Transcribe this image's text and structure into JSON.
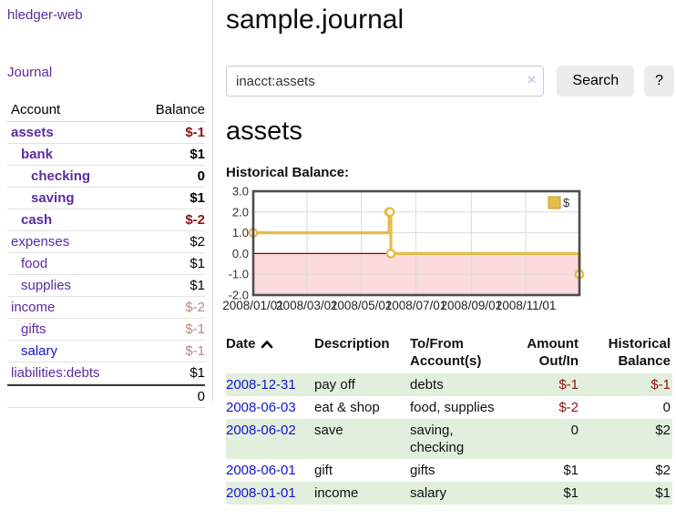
{
  "app": {
    "brand": "hledger-web"
  },
  "colors": {
    "link_purple": "#5b2c9e",
    "link_blue": "#1414cc",
    "negative_strong": "#8c1414",
    "negative_muted": "#bd8686",
    "stripe_green": "#e1efdc",
    "button_bg": "#ececec"
  },
  "sidebar": {
    "nav": {
      "journal_label": "Journal"
    },
    "accounts_table": {
      "headers": {
        "account": "Account",
        "balance": "Balance"
      },
      "rows": [
        {
          "name": "assets",
          "depth": 1,
          "bold": true,
          "balance": "$-1",
          "bal_style": "neg"
        },
        {
          "name": "bank",
          "depth": 2,
          "bold": true,
          "balance": "$1",
          "bal_style": "pos"
        },
        {
          "name": "checking",
          "depth": 3,
          "bold": true,
          "balance": "0",
          "bal_style": "pos"
        },
        {
          "name": "saving",
          "depth": 3,
          "bold": true,
          "balance": "$1",
          "bal_style": "pos"
        },
        {
          "name": "cash",
          "depth": 2,
          "bold": true,
          "balance": "$-2",
          "bal_style": "neg"
        },
        {
          "name": "expenses",
          "depth": 1,
          "bold": false,
          "balance": "$2",
          "bal_style": "pos"
        },
        {
          "name": "food",
          "depth": 2,
          "bold": false,
          "balance": "$1",
          "bal_style": "pos"
        },
        {
          "name": "supplies",
          "depth": 2,
          "bold": false,
          "balance": "$1",
          "bal_style": "pos"
        },
        {
          "name": "income",
          "depth": 1,
          "bold": false,
          "balance": "$-2",
          "bal_style": "neg-muted"
        },
        {
          "name": "gifts",
          "depth": 2,
          "bold": false,
          "balance": "$-1",
          "bal_style": "neg-muted"
        },
        {
          "name": "salary",
          "depth": 2,
          "bold": false,
          "balance": "$-1",
          "bal_style": "neg-muted",
          "link_style": "unvisited"
        },
        {
          "name": "liabilities:debts",
          "depth": 1,
          "bold": false,
          "balance": "$1",
          "bal_style": "pos"
        }
      ],
      "total": "0"
    }
  },
  "main": {
    "title": "sample.journal",
    "search": {
      "value": "inacct:assets",
      "clear_label": "×",
      "button_label": "Search",
      "help_label": "?"
    },
    "account_heading": "assets",
    "chart_label": "Historical Balance:"
  },
  "chart_data": {
    "type": "line",
    "step": true,
    "series": [
      {
        "name": "$",
        "points": [
          [
            "2008-01-01",
            1
          ],
          [
            "2008-06-01",
            2
          ],
          [
            "2008-06-02",
            2
          ],
          [
            "2008-06-03",
            0
          ],
          [
            "2008-12-31",
            -1
          ]
        ]
      }
    ],
    "x_range": [
      "2008-01-01",
      "2008-12-31"
    ],
    "ylim": [
      -2,
      3
    ],
    "y_ticks": [
      3.0,
      2.0,
      1.0,
      0.0,
      -1.0,
      -2.0
    ],
    "x_ticks": [
      "2008/01/01",
      "2008/03/01",
      "2008/05/01",
      "2008/07/01",
      "2008/09/01",
      "2008/11/01"
    ],
    "legend": {
      "label": "$",
      "position": "top-right"
    },
    "grid": true,
    "colors": {
      "line": "#e5bd4a",
      "line_dark": "#c9992a",
      "marker_fill": "#ffffff",
      "negative_region": "#fbdbdb",
      "zero_line": "#8b0000",
      "grid": "#dcdcdc",
      "frame": "#4d4d4d",
      "tick_text": "#333333"
    }
  },
  "register_table": {
    "headers": {
      "date": "Date",
      "description": "Description",
      "tofrom_line1": "To/From",
      "tofrom_line2": "Account(s)",
      "amount_line1": "Amount",
      "amount_line2": "Out/In",
      "balance_line1": "Historical",
      "balance_line2": "Balance"
    },
    "sort": {
      "column": "date",
      "direction": "ascending"
    },
    "rows": [
      {
        "date": "2008-12-31",
        "description": "pay off",
        "accounts": "debts",
        "amount": "$-1",
        "amount_neg": true,
        "balance": "$-1",
        "balance_neg": true,
        "stripe": true
      },
      {
        "date": "2008-06-03",
        "description": "eat & shop",
        "accounts": "food, supplies",
        "amount": "$-2",
        "amount_neg": true,
        "balance": "0",
        "balance_neg": false,
        "stripe": false
      },
      {
        "date": "2008-06-02",
        "description": "save",
        "accounts": "saving, checking",
        "amount": "0",
        "amount_neg": false,
        "balance": "$2",
        "balance_neg": false,
        "stripe": true
      },
      {
        "date": "2008-06-01",
        "description": "gift",
        "accounts": "gifts",
        "amount": "$1",
        "amount_neg": false,
        "balance": "$2",
        "balance_neg": false,
        "stripe": false
      },
      {
        "date": "2008-01-01",
        "description": "income",
        "accounts": "salary",
        "amount": "$1",
        "amount_neg": false,
        "balance": "$1",
        "balance_neg": false,
        "stripe": true
      }
    ]
  }
}
